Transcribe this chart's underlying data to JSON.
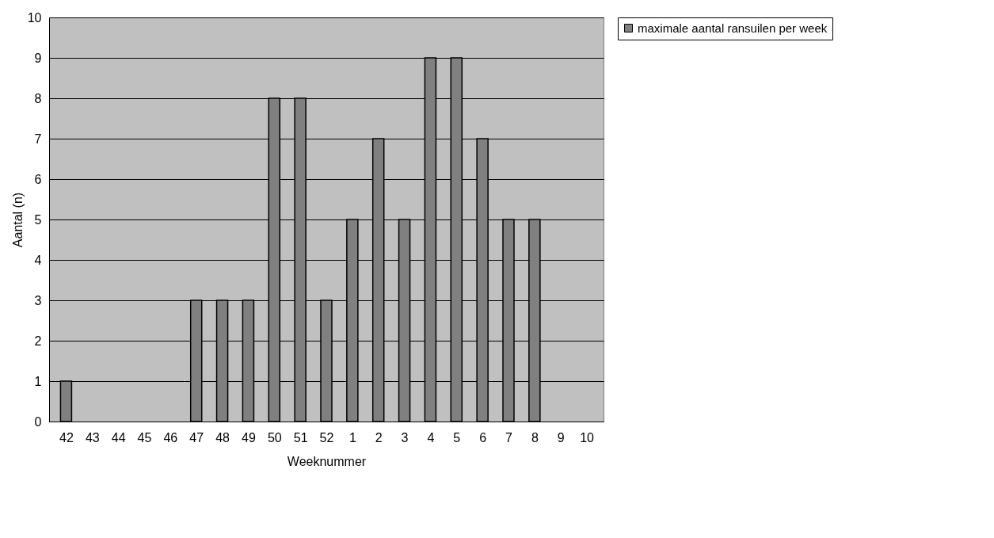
{
  "chart_data": {
    "type": "bar",
    "xlabel": "Weeknummer",
    "ylabel": "Aantal (n)",
    "categories": [
      "42",
      "43",
      "44",
      "45",
      "46",
      "47",
      "48",
      "49",
      "50",
      "51",
      "52",
      "1",
      "2",
      "3",
      "4",
      "5",
      "6",
      "7",
      "8",
      "9",
      "10"
    ],
    "series": [
      {
        "name": "maximale aantal ransuilen per week",
        "color": "#808080",
        "values": [
          1,
          0,
          0,
          0,
          0,
          3,
          3,
          3,
          8,
          8,
          3,
          5,
          7,
          5,
          9,
          9,
          7,
          5,
          5,
          0,
          0
        ]
      }
    ],
    "ylim": [
      0,
      10
    ],
    "yticks": [
      0,
      1,
      2,
      3,
      4,
      5,
      6,
      7,
      8,
      9,
      10
    ],
    "grid": "y",
    "legend": "right"
  }
}
